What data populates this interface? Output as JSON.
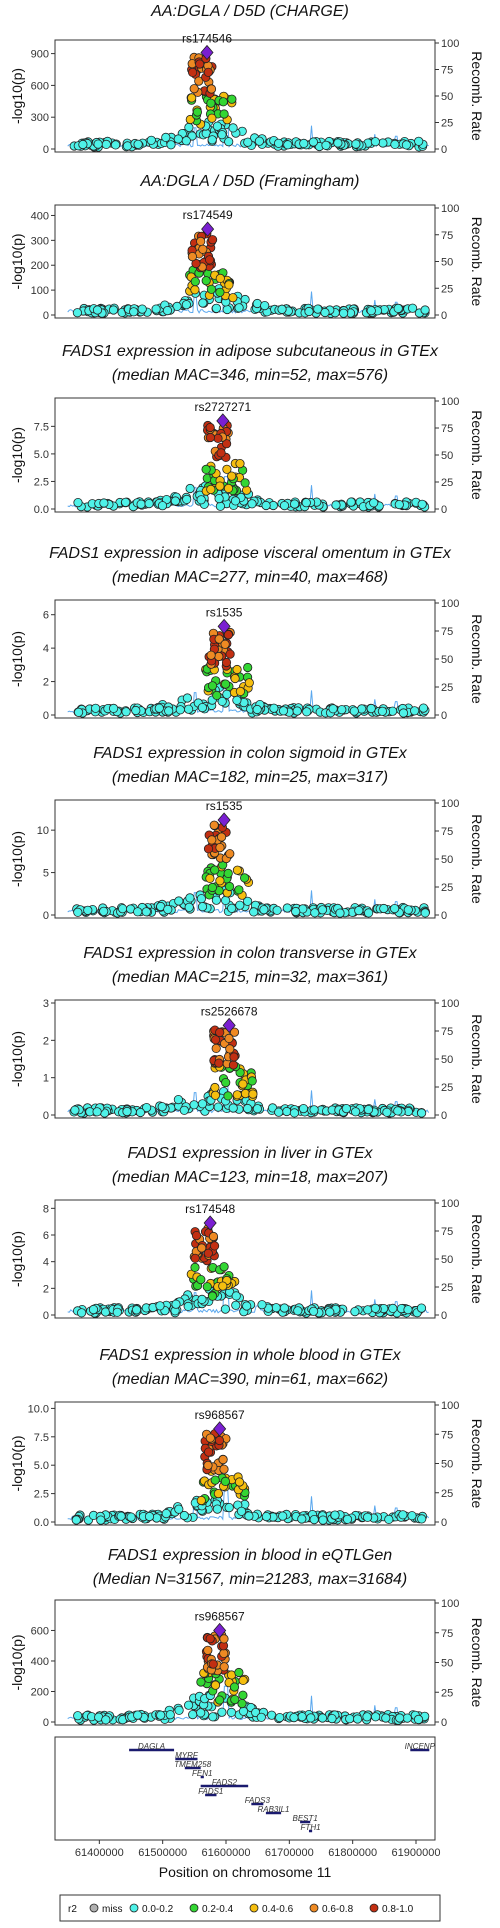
{
  "x_axis": {
    "label": "Position on chromosome 11",
    "range": [
      61330000,
      61930000
    ],
    "ticks": [
      61400000,
      61500000,
      61600000,
      61700000,
      61800000,
      61900000
    ]
  },
  "recomb_axis": {
    "label": "Recomb. Rate",
    "range": [
      0,
      100
    ],
    "ticks": [
      0,
      25,
      50,
      75,
      100
    ]
  },
  "y_axis_label": "-log10(p)",
  "legend": {
    "title": "r2",
    "entries": [
      {
        "label": "miss",
        "color": "#b0b0b0"
      },
      {
        "label": "0.0-0.2",
        "color": "#4ef2e8"
      },
      {
        "label": "0.2-0.4",
        "color": "#33d633"
      },
      {
        "label": "0.4-0.6",
        "color": "#f5be0f"
      },
      {
        "label": "0.6-0.8",
        "color": "#ee8a23"
      },
      {
        "label": "0.8-1.0",
        "color": "#c22f12"
      }
    ]
  },
  "lead_color": "#7a1fd1",
  "recomb_color": "#5ba8ee",
  "chart_data": [
    {
      "type": "scatter",
      "title": [
        "AA:DGLA / D5D (CHARGE)"
      ],
      "ylim": [
        0,
        1000
      ],
      "yticks": [
        0,
        300,
        600,
        900
      ],
      "lead": {
        "name": "rs174546",
        "x": 61570000,
        "y": 910
      },
      "seed": 11,
      "noise": 10,
      "series_summary": "dense r2 0.8-1.0 cluster near 61.55-61.59 Mb reaching ~900; 0.0-0.2 background near 0"
    },
    {
      "type": "scatter",
      "title": [
        "AA:DGLA / D5D (Framingham)"
      ],
      "ylim": [
        0,
        430
      ],
      "yticks": [
        0,
        100,
        200,
        300,
        400
      ],
      "lead": {
        "name": "rs174549",
        "x": 61571000,
        "y": 345
      },
      "seed": 23,
      "noise": 5,
      "series_summary": "r2 0.8-1.0 cluster ~300-340 at 61.55-61.58 Mb"
    },
    {
      "type": "scatter",
      "title": [
        "FADS1 expression in adipose subcutaneous in GTEx",
        "(median MAC=346, min=52, max=576)"
      ],
      "ylim": [
        0,
        9.8
      ],
      "yticks": [
        0,
        2.5,
        5.0,
        7.5
      ],
      "lead": {
        "name": "rs2727271",
        "x": 61595000,
        "y": 8.0
      },
      "seed": 37,
      "noise": 1.2,
      "series_summary": "green points up to ~7.5; lead purple diamond 8.0"
    },
    {
      "type": "scatter",
      "title": [
        "FADS1 expression in adipose visceral omentum in GTEx",
        "(median MAC=277, min=40, max=468)"
      ],
      "ylim": [
        0,
        6.7
      ],
      "yticks": [
        0,
        2,
        4,
        6
      ],
      "lead": {
        "name": "rs1535",
        "x": 61597000,
        "y": 5.3
      },
      "seed": 41,
      "noise": 0.8,
      "series_summary": "red cluster ~4.5-5.2 near 61.56-61.59 Mb"
    },
    {
      "type": "scatter",
      "title": [
        "FADS1 expression in colon sigmoid in GTEx",
        "(median MAC=182, min=25, max=317)"
      ],
      "ylim": [
        0,
        13.2
      ],
      "yticks": [
        0,
        5,
        10
      ],
      "lead": {
        "name": "rs1535",
        "x": 61597000,
        "y": 11.2
      },
      "seed": 53,
      "noise": 1.6,
      "series_summary": "red cluster ~6-10 near 61.56-61.59 Mb"
    },
    {
      "type": "scatter",
      "title": [
        "FADS1 expression in colon transverse in GTEx",
        "(median MAC=215, min=32, max=361)"
      ],
      "ylim": [
        0,
        3.0
      ],
      "yticks": [
        0,
        1,
        2,
        3
      ],
      "lead": {
        "name": "rs2526678",
        "x": 61605000,
        "y": 2.4
      },
      "seed": 67,
      "noise": 0.6,
      "series_summary": "mostly 0.0-0.2 points up to ~2.3"
    },
    {
      "type": "scatter",
      "title": [
        "FADS1 expression in liver in GTEx",
        "(median MAC=123, min=18, max=207)"
      ],
      "ylim": [
        0,
        8.4
      ],
      "yticks": [
        0,
        2,
        4,
        6,
        8
      ],
      "lead": {
        "name": "rs174548",
        "x": 61575000,
        "y": 6.9
      },
      "seed": 71,
      "noise": 1.0,
      "series_summary": "red and orange cluster ~5.5-6.5"
    },
    {
      "type": "scatter",
      "title": [
        "FADS1 expression in whole blood in GTEx",
        "(median MAC=390, min=61, max=662)"
      ],
      "ylim": [
        0,
        10.3
      ],
      "yticks": [
        0,
        2.5,
        5.0,
        7.5,
        10.0
      ],
      "lead": {
        "name": "rs968567",
        "x": 61590000,
        "y": 8.2
      },
      "seed": 83,
      "noise": 1.3,
      "series_summary": "yellow cluster ~4.5-6.2"
    },
    {
      "type": "scatter",
      "title": [
        "FADS1 expression in blood in eQTLGen",
        "(Median N=31567, min=21283, max=31684)"
      ],
      "ylim": [
        0,
        780
      ],
      "yticks": [
        0,
        200,
        400,
        600
      ],
      "lead": {
        "name": "rs968567",
        "x": 61590000,
        "y": 600
      },
      "seed": 97,
      "noise": 20,
      "series_summary": "yellow cluster ~350-480"
    }
  ],
  "genes": [
    {
      "name": "DAGLA",
      "start": 61447000,
      "end": 61518000,
      "row": 0
    },
    {
      "name": "INCENP",
      "start": 61891000,
      "end": 61921000,
      "row": 0
    },
    {
      "name": "MYRF",
      "start": 61520000,
      "end": 61555000,
      "row": 1
    },
    {
      "name": "TMEM258",
      "start": 61535000,
      "end": 61560000,
      "row": 2
    },
    {
      "name": "FEN1",
      "start": 61560000,
      "end": 61565000,
      "row": 3
    },
    {
      "name": "FADS2",
      "start": 61560000,
      "end": 61635000,
      "row": 4
    },
    {
      "name": "FADS1",
      "start": 61567000,
      "end": 61585000,
      "row": 5
    },
    {
      "name": "FADS3",
      "start": 61640000,
      "end": 61659000,
      "row": 6
    },
    {
      "name": "RAB3IL1",
      "start": 61663000,
      "end": 61687000,
      "row": 7
    },
    {
      "name": "BEST1",
      "start": 61717000,
      "end": 61733000,
      "row": 8
    },
    {
      "name": "FTH1",
      "start": 61731000,
      "end": 61736000,
      "row": 9
    }
  ]
}
